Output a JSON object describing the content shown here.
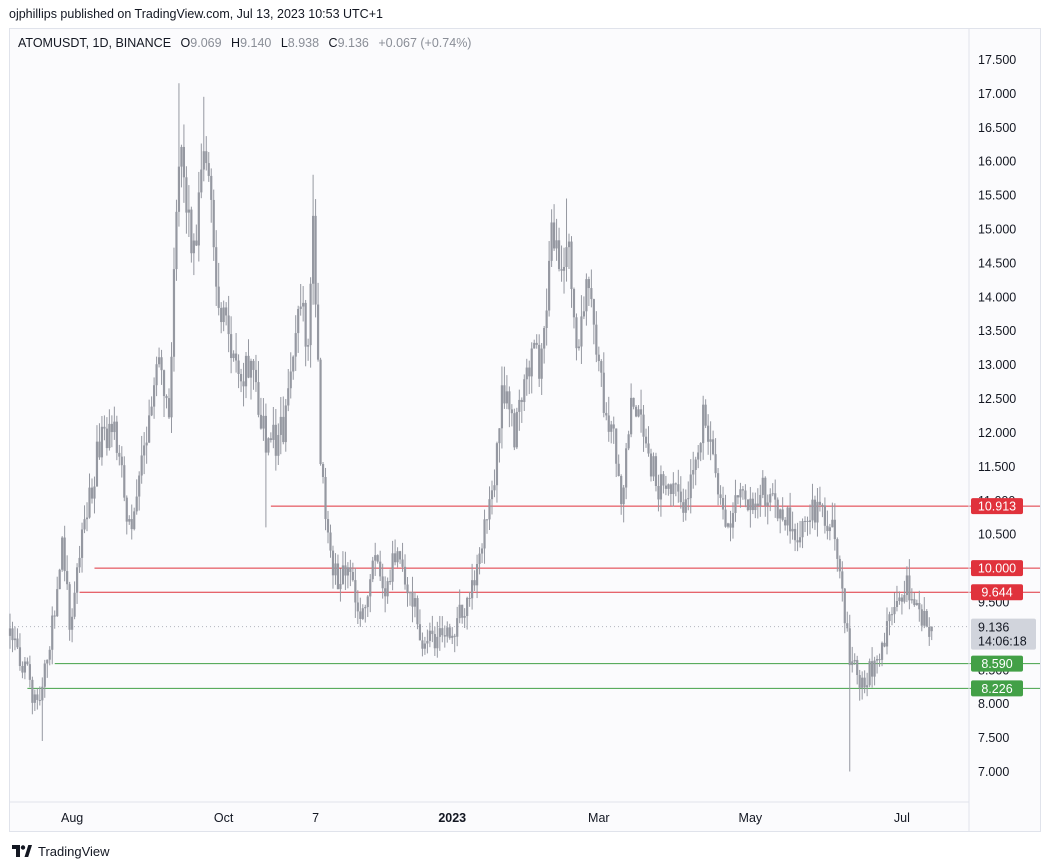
{
  "header": {
    "published": "ojphillips published on TradingView.com, Jul 13, 2023 10:53 UTC+1"
  },
  "legend": {
    "symbol": "ATOMUSDT, 1D, BINANCE",
    "o_key": "O",
    "o_val": "9.069",
    "h_key": "H",
    "h_val": "9.140",
    "l_key": "L",
    "l_val": "8.938",
    "c_key": "C",
    "c_val": "9.136",
    "change": "+0.067 (+0.74%)"
  },
  "footer": {
    "brand": "TradingView",
    "logo_icon": "tradingview-logo-icon"
  },
  "colors": {
    "candle": "#9598a1",
    "resistance": "#e0323c",
    "support": "#43a047",
    "last_price": "#d1d4dc"
  },
  "chart_data": {
    "type": "candlestick",
    "title": "",
    "xlabel": "",
    "ylabel": "",
    "ylim": [
      6.55,
      17.95
    ],
    "y_ticks": [
      "7.000",
      "7.500",
      "8.000",
      "8.500",
      "9.000",
      "9.500",
      "10.000",
      "10.500",
      "11.000",
      "11.500",
      "12.000",
      "12.500",
      "13.000",
      "13.500",
      "14.000",
      "14.500",
      "15.000",
      "15.500",
      "16.000",
      "16.500",
      "17.000",
      "17.500"
    ],
    "x_ticks": [
      {
        "label": "Aug",
        "date": "2022-08-01",
        "bold": false
      },
      {
        "label": "Oct",
        "date": "2022-10-01",
        "bold": false
      },
      {
        "label": "7",
        "date": "2022-11-07",
        "bold": false
      },
      {
        "label": "2023",
        "date": "2023-01-01",
        "bold": true
      },
      {
        "label": "Mar",
        "date": "2023-03-01",
        "bold": false
      },
      {
        "label": "May",
        "date": "2023-05-01",
        "bold": false
      },
      {
        "label": "Jul",
        "date": "2023-07-01",
        "bold": false
      }
    ],
    "x_range": [
      "2022-07-07",
      "2023-07-28"
    ],
    "horizontal_levels": [
      {
        "value": 10.913,
        "label": "10.913",
        "kind": "resistance",
        "start_date": "2022-10-20"
      },
      {
        "value": 10.0,
        "label": "10.000",
        "kind": "resistance",
        "start_date": "2022-08-10"
      },
      {
        "value": 9.644,
        "label": "9.644",
        "kind": "resistance",
        "start_date": "2022-08-04"
      },
      {
        "value": 8.59,
        "label": "8.590",
        "kind": "support",
        "start_date": "2022-07-25"
      },
      {
        "value": 8.226,
        "label": "8.226",
        "kind": "support",
        "start_date": "2022-07-14"
      }
    ],
    "last_price": {
      "value": 9.136,
      "label": "9.136",
      "countdown": "14:06:18"
    },
    "anchors": [
      [
        "2022-07-07",
        9.0
      ],
      [
        "2022-07-14",
        8.4
      ],
      [
        "2022-07-18",
        7.9
      ],
      [
        "2022-07-23",
        8.9
      ],
      [
        "2022-07-28",
        10.3
      ],
      [
        "2022-07-31",
        9.2
      ],
      [
        "2022-08-05",
        10.5
      ],
      [
        "2022-08-12",
        11.8
      ],
      [
        "2022-08-18",
        12.0
      ],
      [
        "2022-08-24",
        10.6
      ],
      [
        "2022-08-28",
        11.3
      ],
      [
        "2022-09-01",
        12.3
      ],
      [
        "2022-09-05",
        12.9
      ],
      [
        "2022-09-09",
        12.5
      ],
      [
        "2022-09-12",
        15.2
      ],
      [
        "2022-09-14",
        16.0
      ],
      [
        "2022-09-19",
        14.6
      ],
      [
        "2022-09-23",
        16.4
      ],
      [
        "2022-09-26",
        15.1
      ],
      [
        "2022-09-29",
        14.1
      ],
      [
        "2022-10-03",
        13.2
      ],
      [
        "2022-10-08",
        12.9
      ],
      [
        "2022-10-13",
        13.1
      ],
      [
        "2022-10-18",
        11.7
      ],
      [
        "2022-10-22",
        11.9
      ],
      [
        "2022-10-26",
        12.2
      ],
      [
        "2022-10-31",
        14.0
      ],
      [
        "2022-11-04",
        13.3
      ],
      [
        "2022-11-06",
        15.1
      ],
      [
        "2022-11-09",
        11.7
      ],
      [
        "2022-11-12",
        10.3
      ],
      [
        "2022-11-16",
        9.7
      ],
      [
        "2022-11-20",
        10.0
      ],
      [
        "2022-11-26",
        9.3
      ],
      [
        "2022-12-01",
        10.3
      ],
      [
        "2022-12-05",
        9.8
      ],
      [
        "2022-12-10",
        10.2
      ],
      [
        "2022-12-15",
        9.7
      ],
      [
        "2022-12-19",
        9.0
      ],
      [
        "2022-12-24",
        8.9
      ],
      [
        "2023-01-01",
        9.1
      ],
      [
        "2023-01-08",
        9.5
      ],
      [
        "2023-01-13",
        10.4
      ],
      [
        "2023-01-17",
        11.0
      ],
      [
        "2023-01-21",
        12.6
      ],
      [
        "2023-01-26",
        12.0
      ],
      [
        "2023-02-01",
        13.0
      ],
      [
        "2023-02-06",
        13.1
      ],
      [
        "2023-02-10",
        14.8
      ],
      [
        "2023-02-13",
        14.4
      ],
      [
        "2023-02-16",
        14.9
      ],
      [
        "2023-02-20",
        13.3
      ],
      [
        "2023-02-24",
        14.0
      ],
      [
        "2023-02-27",
        13.5
      ],
      [
        "2023-03-03",
        12.3
      ],
      [
        "2023-03-07",
        11.9
      ],
      [
        "2023-03-10",
        11.0
      ],
      [
        "2023-03-14",
        12.3
      ],
      [
        "2023-03-17",
        12.6
      ],
      [
        "2023-03-21",
        11.7
      ],
      [
        "2023-03-25",
        11.2
      ],
      [
        "2023-03-30",
        11.2
      ],
      [
        "2023-04-04",
        10.9
      ],
      [
        "2023-04-08",
        11.5
      ],
      [
        "2023-04-12",
        12.2
      ],
      [
        "2023-04-15",
        11.7
      ],
      [
        "2023-04-19",
        11.0
      ],
      [
        "2023-04-23",
        10.7
      ],
      [
        "2023-04-26",
        11.2
      ],
      [
        "2023-05-01",
        10.9
      ],
      [
        "2023-05-05",
        11.2
      ],
      [
        "2023-05-10",
        10.9
      ],
      [
        "2023-05-15",
        10.8
      ],
      [
        "2023-05-20",
        10.5
      ],
      [
        "2023-05-26",
        10.8
      ],
      [
        "2023-05-30",
        10.8
      ],
      [
        "2023-06-03",
        10.7
      ],
      [
        "2023-06-06",
        9.9
      ],
      [
        "2023-06-10",
        8.7
      ],
      [
        "2023-06-13",
        8.35
      ],
      [
        "2023-06-17",
        8.45
      ],
      [
        "2023-06-22",
        8.75
      ],
      [
        "2023-06-26",
        9.3
      ],
      [
        "2023-06-30",
        9.5
      ],
      [
        "2023-07-03",
        9.85
      ],
      [
        "2023-07-07",
        9.35
      ],
      [
        "2023-07-10",
        9.3
      ],
      [
        "2023-07-13",
        9.136
      ]
    ]
  }
}
